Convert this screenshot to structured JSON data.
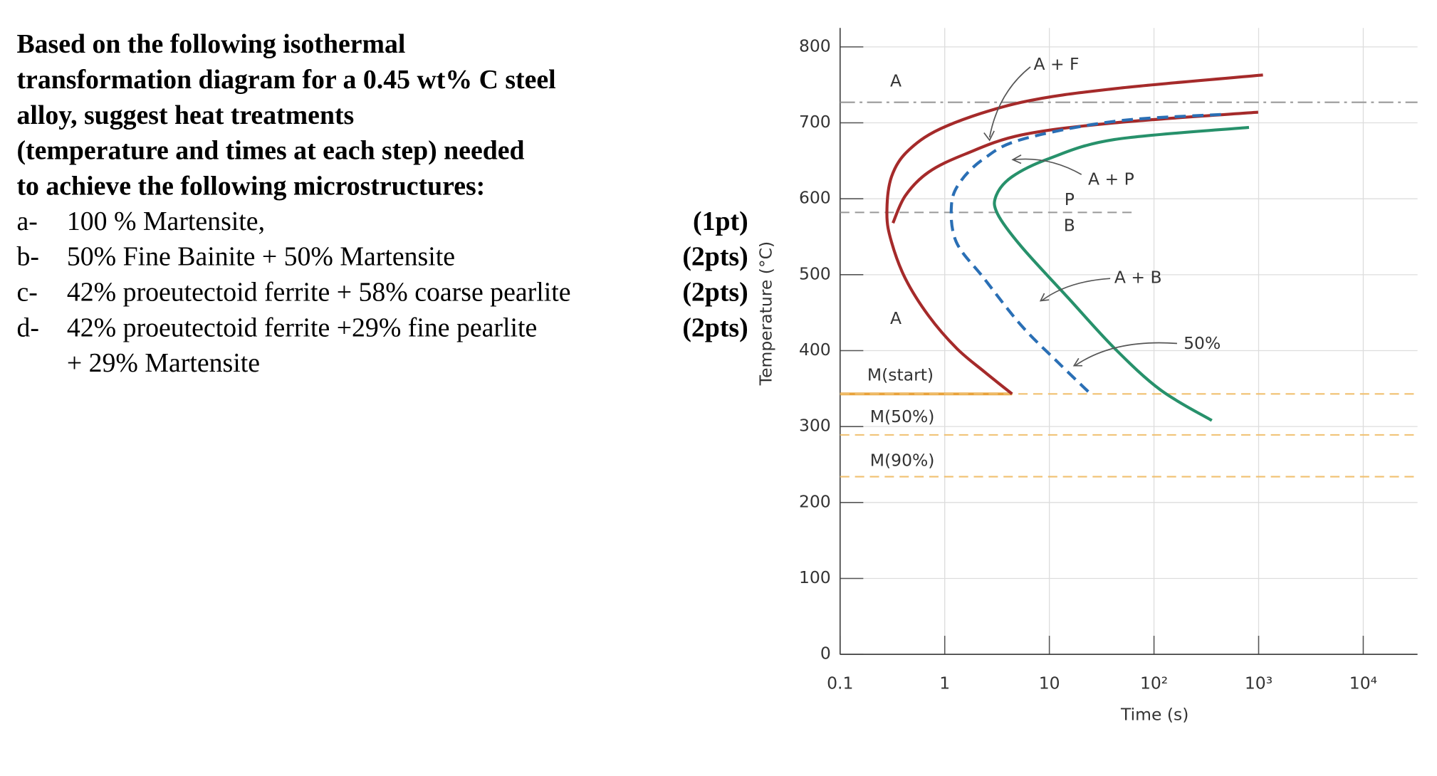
{
  "question": {
    "title_lines": [
      "Based on the following isothermal",
      "transformation diagram for a 0.45 wt% C steel",
      "alloy, suggest heat treatments",
      "(temperature and times at each step) needed",
      "to achieve the following microstructures:"
    ],
    "items": [
      {
        "label": "a-",
        "text_lines": [
          "100 % Martensite,"
        ],
        "points": "(1pt)"
      },
      {
        "label": "b-",
        "text_lines": [
          "50% Fine Bainite + 50% Martensite"
        ],
        "points": "(2pts)"
      },
      {
        "label": "c-",
        "text_lines": [
          "42% proeutectoid ferrite + 58% coarse pearlite"
        ],
        "points": "(2pts)"
      },
      {
        "label": "d-",
        "text_lines": [
          "42% proeutectoid ferrite +29% fine pearlite",
          "+ 29% Martensite"
        ],
        "points": "(2pts)"
      }
    ]
  },
  "chart_data": {
    "type": "line",
    "xscale": "log",
    "grid": true,
    "x_label": "Time (s)",
    "y_label": "Temperature (°C)",
    "xlim": [
      0.1,
      33000
    ],
    "ylim": [
      0,
      825
    ],
    "xticks": [
      0.1,
      1,
      10,
      {
        "value": 100,
        "label": "10²"
      },
      {
        "value": 1000,
        "label": "10³"
      },
      {
        "value": 10000,
        "label": "10⁴"
      }
    ],
    "yticks": [
      0,
      100,
      200,
      300,
      400,
      500,
      600,
      700,
      800
    ],
    "series": [
      {
        "color": "#a52a2a",
        "dash": "solid",
        "x": [
          1100,
          42,
          5.4,
          1.05,
          0.46,
          0.31,
          0.28,
          0.31,
          0.42,
          0.7,
          1.3,
          2.4,
          4.4
        ],
        "y": [
          763,
          745,
          727,
          696,
          665,
          629,
          580,
          543,
          495,
          446,
          403,
          372,
          343
        ]
      },
      {
        "color": "#a52a2a",
        "dash": "solid",
        "x": [
          990,
          42,
          5.4,
          1.58,
          0.7,
          0.42,
          0.32
        ],
        "y": [
          714,
          700,
          684,
          659,
          635,
          604,
          568
        ]
      },
      {
        "color": "#2a6fb5",
        "dash": "dashed",
        "x": [
          437,
          42,
          5.4,
          2.38,
          1.42,
          1.16,
          1.29,
          2.38,
          5.4,
          12.2,
          24.8
        ],
        "y": [
          711,
          702,
          678,
          653,
          623,
          592,
          543,
          495,
          433,
          384,
          343
        ]
      },
      {
        "color": "#27916b",
        "dash": "solid",
        "x": [
          809,
          42,
          9.96,
          4.4,
          3.1,
          3.2,
          5.4,
          15,
          42,
          116,
          357
        ],
        "y": [
          694,
          678,
          653,
          629,
          604,
          580,
          537,
          470,
          403,
          348,
          308
        ]
      }
    ],
    "reference_lines": [
      {
        "value": 343,
        "color": "#e8a23a",
        "dash": "solid",
        "x_end": 4.4
      },
      {
        "value": 343,
        "color": "#f0c070",
        "dash": "dashed"
      },
      {
        "value": 289,
        "color": "#f0c070",
        "dash": "dashed"
      },
      {
        "value": 234,
        "color": "#f0c070",
        "dash": "dashed"
      },
      {
        "value": 727,
        "color": "#999999",
        "dash": "dashdot"
      },
      {
        "value": 582,
        "color": "#999999",
        "dash": "dashed",
        "x_end": 63
      }
    ],
    "annotations": [
      "A",
      "A + F",
      "A + P",
      "P",
      "B",
      "A + B",
      "A",
      "50%",
      "M(start)",
      "M(50%)",
      "M(90%)"
    ]
  }
}
